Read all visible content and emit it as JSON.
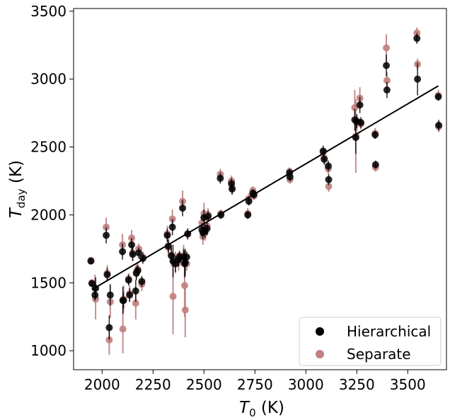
{
  "chart_data": {
    "type": "scatter",
    "xlabel": "T_0 (K)",
    "ylabel": "T_day (K)",
    "xlim": [
      1860,
      3690
    ],
    "ylim": [
      860,
      3520
    ],
    "xticks": [
      "2000",
      "2250",
      "2500",
      "2750",
      "3000",
      "3250",
      "3500"
    ],
    "yticks": [
      "1000",
      "1500",
      "2000",
      "2500",
      "3000",
      "3500"
    ],
    "grid": false,
    "legend_position": "lower-right",
    "fit_line": {
      "x": [
        1950,
        3650
      ],
      "y": [
        1450,
        2950
      ],
      "color": "#000000"
    },
    "series": [
      {
        "name": "Separate",
        "color": "#c08080",
        "points": [
          {
            "x": 1945,
            "y": 1665,
            "err": 20
          },
          {
            "x": 1950,
            "y": 1500,
            "err": 20
          },
          {
            "x": 1965,
            "y": 1460,
            "err": 100
          },
          {
            "x": 1968,
            "y": 1380,
            "err": 150
          },
          {
            "x": 2020,
            "y": 1910,
            "err": 70
          },
          {
            "x": 2025,
            "y": 1570,
            "err": 60
          },
          {
            "x": 2035,
            "y": 1080,
            "err": 110
          },
          {
            "x": 2040,
            "y": 1360,
            "err": 120
          },
          {
            "x": 2100,
            "y": 1780,
            "err": 80
          },
          {
            "x": 2102,
            "y": 1160,
            "err": 180
          },
          {
            "x": 2105,
            "y": 1380,
            "err": 100
          },
          {
            "x": 2130,
            "y": 1530,
            "err": 40
          },
          {
            "x": 2135,
            "y": 1420,
            "err": 60
          },
          {
            "x": 2145,
            "y": 1830,
            "err": 60
          },
          {
            "x": 2150,
            "y": 1720,
            "err": 60
          },
          {
            "x": 2165,
            "y": 1350,
            "err": 120
          },
          {
            "x": 2168,
            "y": 1580,
            "err": 60
          },
          {
            "x": 2175,
            "y": 1600,
            "err": 50
          },
          {
            "x": 2180,
            "y": 1750,
            "err": 40
          },
          {
            "x": 2195,
            "y": 1490,
            "err": 50
          },
          {
            "x": 2200,
            "y": 1690,
            "err": 40
          },
          {
            "x": 2320,
            "y": 1860,
            "err": 60
          },
          {
            "x": 2325,
            "y": 1760,
            "err": 60
          },
          {
            "x": 2340,
            "y": 1700,
            "err": 80
          },
          {
            "x": 2345,
            "y": 1970,
            "err": 70
          },
          {
            "x": 2348,
            "y": 1400,
            "err": 280
          },
          {
            "x": 2360,
            "y": 1650,
            "err": 80
          },
          {
            "x": 2375,
            "y": 1650,
            "err": 60
          },
          {
            "x": 2380,
            "y": 1700,
            "err": 40
          },
          {
            "x": 2395,
            "y": 2100,
            "err": 80
          },
          {
            "x": 2400,
            "y": 1700,
            "err": 80
          },
          {
            "x": 2405,
            "y": 1480,
            "err": 230
          },
          {
            "x": 2408,
            "y": 1300,
            "err": 200
          },
          {
            "x": 2415,
            "y": 1640,
            "err": 50
          },
          {
            "x": 2420,
            "y": 1860,
            "err": 40
          },
          {
            "x": 2490,
            "y": 1940,
            "err": 60
          },
          {
            "x": 2495,
            "y": 1840,
            "err": 60
          },
          {
            "x": 2500,
            "y": 2010,
            "err": 80
          },
          {
            "x": 2505,
            "y": 1870,
            "err": 60
          },
          {
            "x": 2515,
            "y": 1920,
            "err": 60
          },
          {
            "x": 2520,
            "y": 2000,
            "err": 50
          },
          {
            "x": 2580,
            "y": 2300,
            "err": 40
          },
          {
            "x": 2583,
            "y": 2010,
            "err": 30
          },
          {
            "x": 2635,
            "y": 2250,
            "err": 40
          },
          {
            "x": 2638,
            "y": 2200,
            "err": 50
          },
          {
            "x": 2715,
            "y": 2010,
            "err": 40
          },
          {
            "x": 2720,
            "y": 2120,
            "err": 40
          },
          {
            "x": 2740,
            "y": 2180,
            "err": 30
          },
          {
            "x": 2745,
            "y": 2140,
            "err": 30
          },
          {
            "x": 2920,
            "y": 2320,
            "err": 30
          },
          {
            "x": 2922,
            "y": 2260,
            "err": 30
          },
          {
            "x": 3085,
            "y": 2460,
            "err": 40
          },
          {
            "x": 3090,
            "y": 2420,
            "err": 40
          },
          {
            "x": 3110,
            "y": 2340,
            "err": 40
          },
          {
            "x": 3112,
            "y": 2210,
            "err": 40
          },
          {
            "x": 3240,
            "y": 2790,
            "err": 130
          },
          {
            "x": 3245,
            "y": 2580,
            "err": 270
          },
          {
            "x": 3250,
            "y": 2680,
            "err": 60
          },
          {
            "x": 3265,
            "y": 2860,
            "err": 80
          },
          {
            "x": 3270,
            "y": 2670,
            "err": 40
          },
          {
            "x": 3340,
            "y": 2600,
            "err": 40
          },
          {
            "x": 3342,
            "y": 2350,
            "err": 30
          },
          {
            "x": 3395,
            "y": 3230,
            "err": 100
          },
          {
            "x": 3398,
            "y": 2990,
            "err": 60
          },
          {
            "x": 3545,
            "y": 3340,
            "err": 40
          },
          {
            "x": 3548,
            "y": 3110,
            "err": 40
          },
          {
            "x": 3650,
            "y": 2880,
            "err": 40
          },
          {
            "x": 3652,
            "y": 2650,
            "err": 40
          }
        ]
      },
      {
        "name": "Hierarchical",
        "color": "#000000",
        "points": [
          {
            "x": 1945,
            "y": 1660,
            "err": 20
          },
          {
            "x": 1950,
            "y": 1495,
            "err": 20
          },
          {
            "x": 1965,
            "y": 1410,
            "err": 40
          },
          {
            "x": 1968,
            "y": 1460,
            "err": 80
          },
          {
            "x": 2020,
            "y": 1850,
            "err": 60
          },
          {
            "x": 2025,
            "y": 1560,
            "err": 50
          },
          {
            "x": 2035,
            "y": 1170,
            "err": 90
          },
          {
            "x": 2040,
            "y": 1410,
            "err": 80
          },
          {
            "x": 2100,
            "y": 1730,
            "err": 60
          },
          {
            "x": 2102,
            "y": 1370,
            "err": 100
          },
          {
            "x": 2105,
            "y": 1370,
            "err": 60
          },
          {
            "x": 2130,
            "y": 1520,
            "err": 40
          },
          {
            "x": 2135,
            "y": 1410,
            "err": 50
          },
          {
            "x": 2145,
            "y": 1780,
            "err": 50
          },
          {
            "x": 2150,
            "y": 1710,
            "err": 50
          },
          {
            "x": 2165,
            "y": 1440,
            "err": 80
          },
          {
            "x": 2168,
            "y": 1570,
            "err": 50
          },
          {
            "x": 2175,
            "y": 1590,
            "err": 40
          },
          {
            "x": 2180,
            "y": 1720,
            "err": 40
          },
          {
            "x": 2195,
            "y": 1510,
            "err": 40
          },
          {
            "x": 2200,
            "y": 1680,
            "err": 40
          },
          {
            "x": 2320,
            "y": 1850,
            "err": 50
          },
          {
            "x": 2325,
            "y": 1770,
            "err": 50
          },
          {
            "x": 2340,
            "y": 1700,
            "err": 60
          },
          {
            "x": 2345,
            "y": 1910,
            "err": 60
          },
          {
            "x": 2348,
            "y": 1660,
            "err": 120
          },
          {
            "x": 2360,
            "y": 1640,
            "err": 60
          },
          {
            "x": 2375,
            "y": 1670,
            "err": 50
          },
          {
            "x": 2380,
            "y": 1690,
            "err": 40
          },
          {
            "x": 2395,
            "y": 2050,
            "err": 60
          },
          {
            "x": 2400,
            "y": 1690,
            "err": 60
          },
          {
            "x": 2405,
            "y": 1640,
            "err": 100
          },
          {
            "x": 2408,
            "y": 1650,
            "err": 100
          },
          {
            "x": 2415,
            "y": 1690,
            "err": 40
          },
          {
            "x": 2420,
            "y": 1860,
            "err": 40
          },
          {
            "x": 2490,
            "y": 1890,
            "err": 50
          },
          {
            "x": 2495,
            "y": 1870,
            "err": 50
          },
          {
            "x": 2500,
            "y": 1980,
            "err": 60
          },
          {
            "x": 2505,
            "y": 1880,
            "err": 50
          },
          {
            "x": 2515,
            "y": 1900,
            "err": 50
          },
          {
            "x": 2520,
            "y": 1990,
            "err": 40
          },
          {
            "x": 2580,
            "y": 2270,
            "err": 40
          },
          {
            "x": 2583,
            "y": 2000,
            "err": 30
          },
          {
            "x": 2635,
            "y": 2230,
            "err": 40
          },
          {
            "x": 2638,
            "y": 2190,
            "err": 40
          },
          {
            "x": 2715,
            "y": 2000,
            "err": 30
          },
          {
            "x": 2720,
            "y": 2100,
            "err": 30
          },
          {
            "x": 2740,
            "y": 2160,
            "err": 30
          },
          {
            "x": 2745,
            "y": 2150,
            "err": 30
          },
          {
            "x": 2920,
            "y": 2310,
            "err": 30
          },
          {
            "x": 2922,
            "y": 2280,
            "err": 30
          },
          {
            "x": 3085,
            "y": 2470,
            "err": 40
          },
          {
            "x": 3090,
            "y": 2410,
            "err": 40
          },
          {
            "x": 3110,
            "y": 2360,
            "err": 40
          },
          {
            "x": 3112,
            "y": 2260,
            "err": 40
          },
          {
            "x": 3240,
            "y": 2700,
            "err": 80
          },
          {
            "x": 3245,
            "y": 2570,
            "err": 120
          },
          {
            "x": 3250,
            "y": 2690,
            "err": 50
          },
          {
            "x": 3265,
            "y": 2810,
            "err": 60
          },
          {
            "x": 3270,
            "y": 2680,
            "err": 40
          },
          {
            "x": 3340,
            "y": 2590,
            "err": 30
          },
          {
            "x": 3342,
            "y": 2370,
            "err": 30
          },
          {
            "x": 3395,
            "y": 3100,
            "err": 80
          },
          {
            "x": 3398,
            "y": 2920,
            "err": 60
          },
          {
            "x": 3545,
            "y": 3300,
            "err": 40
          },
          {
            "x": 3548,
            "y": 3000,
            "err": 120
          },
          {
            "x": 3650,
            "y": 2870,
            "err": 30
          },
          {
            "x": 3652,
            "y": 2660,
            "err": 40
          }
        ]
      }
    ]
  }
}
